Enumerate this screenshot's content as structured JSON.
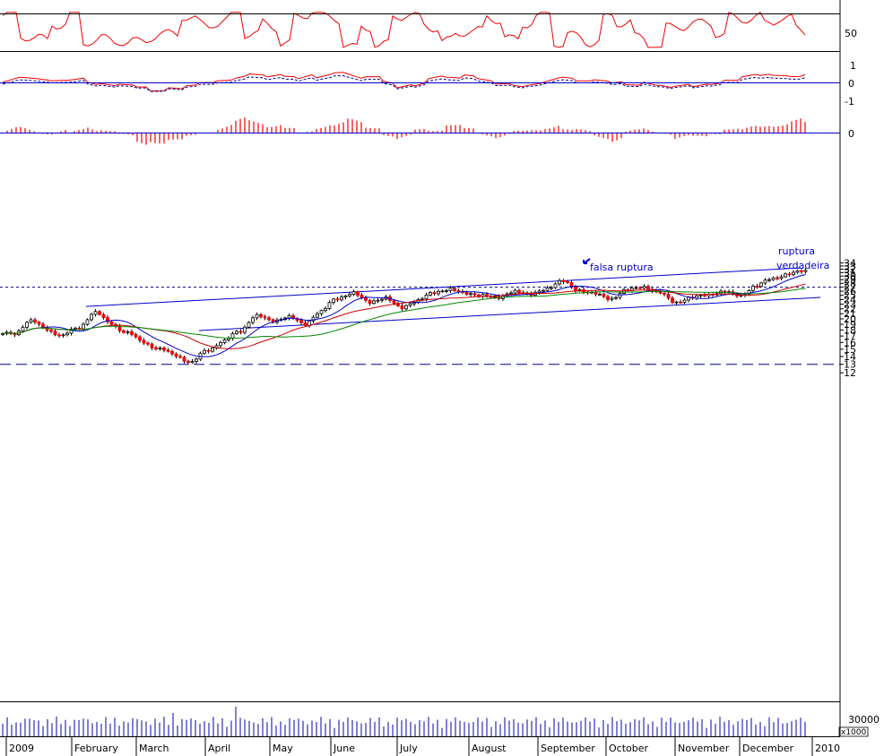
{
  "chart_data": {
    "type": "candlestick",
    "price_axis": {
      "ticks": [
        12,
        13,
        14,
        15,
        16,
        17,
        18,
        19,
        20,
        21,
        22,
        23,
        24,
        25,
        26,
        27,
        28,
        29,
        30,
        31,
        32,
        33,
        34
      ],
      "scale": "log"
    },
    "x_axis": {
      "labels": [
        "2009",
        "February",
        "March",
        "April",
        "May",
        "June",
        "July",
        "August",
        "September",
        "October",
        "November",
        "December",
        "2010"
      ]
    },
    "horizontal_lines": {
      "resistance": 27.0,
      "support": 13.0
    },
    "price_series": [
      {
        "w": 0,
        "c": 17.4
      },
      {
        "w": 1,
        "c": 19.6
      },
      {
        "w": 2,
        "c": 18.2
      },
      {
        "w": 3,
        "c": 17.0
      },
      {
        "w": 4,
        "c": 18.4
      },
      {
        "w": 5,
        "c": 21.2
      },
      {
        "w": 6,
        "c": 19.2
      },
      {
        "w": 7,
        "c": 17.5
      },
      {
        "w": 8,
        "c": 16.1
      },
      {
        "w": 9,
        "c": 15.0
      },
      {
        "w": 10,
        "c": 14.2
      },
      {
        "w": 11,
        "c": 13.2
      },
      {
        "w": 12,
        "c": 14.9
      },
      {
        "w": 13,
        "c": 16.2
      },
      {
        "w": 14,
        "c": 17.8
      },
      {
        "w": 15,
        "c": 20.6
      },
      {
        "w": 16,
        "c": 19.6
      },
      {
        "w": 17,
        "c": 20.4
      },
      {
        "w": 18,
        "c": 19.0
      },
      {
        "w": 19,
        "c": 21.4
      },
      {
        "w": 20,
        "c": 24.2
      },
      {
        "w": 21,
        "c": 25.6
      },
      {
        "w": 22,
        "c": 23.4
      },
      {
        "w": 23,
        "c": 24.4
      },
      {
        "w": 24,
        "c": 22.2
      },
      {
        "w": 25,
        "c": 23.8
      },
      {
        "w": 26,
        "c": 25.6
      },
      {
        "w": 27,
        "c": 26.5
      },
      {
        "w": 28,
        "c": 25.4
      },
      {
        "w": 29,
        "c": 25.0
      },
      {
        "w": 30,
        "c": 24.4
      },
      {
        "w": 31,
        "c": 26.0
      },
      {
        "w": 32,
        "c": 25.2
      },
      {
        "w": 33,
        "c": 26.6
      },
      {
        "w": 34,
        "c": 28.6
      },
      {
        "w": 35,
        "c": 26.2
      },
      {
        "w": 36,
        "c": 25.4
      },
      {
        "w": 37,
        "c": 24.2
      },
      {
        "w": 38,
        "c": 26.3
      },
      {
        "w": 39,
        "c": 27.1
      },
      {
        "w": 40,
        "c": 25.6
      },
      {
        "w": 41,
        "c": 23.4
      },
      {
        "w": 42,
        "c": 24.4
      },
      {
        "w": 43,
        "c": 25.2
      },
      {
        "w": 44,
        "c": 25.8
      },
      {
        "w": 45,
        "c": 25.0
      },
      {
        "w": 46,
        "c": 27.2
      },
      {
        "w": 47,
        "c": 29.5
      },
      {
        "w": 48,
        "c": 30.4
      },
      {
        "w": 49,
        "c": 31.7
      }
    ],
    "volume_axis": {
      "ticks": [
        30000
      ],
      "unit_label": "x1000"
    },
    "oscillator_1": {
      "ticks": [
        50
      ]
    },
    "oscillator_2": {
      "ticks": [
        1,
        0,
        -1
      ]
    },
    "histogram": {
      "ticks": [
        0
      ]
    },
    "annotations": [
      {
        "text": "falsa ruptura",
        "at_price": 28.7
      },
      {
        "text": "ruptura",
        "at_price": 28.9
      },
      {
        "text": "verdadeira",
        "at_price": 28.1
      }
    ],
    "colors": {
      "up": "#ffffff",
      "down": "#ee0000",
      "trendline": "#0000cc",
      "ma_short": "#0000cc",
      "ma_medium": "#cc0000",
      "ma_long": "#008800",
      "signal": "#000088"
    }
  }
}
